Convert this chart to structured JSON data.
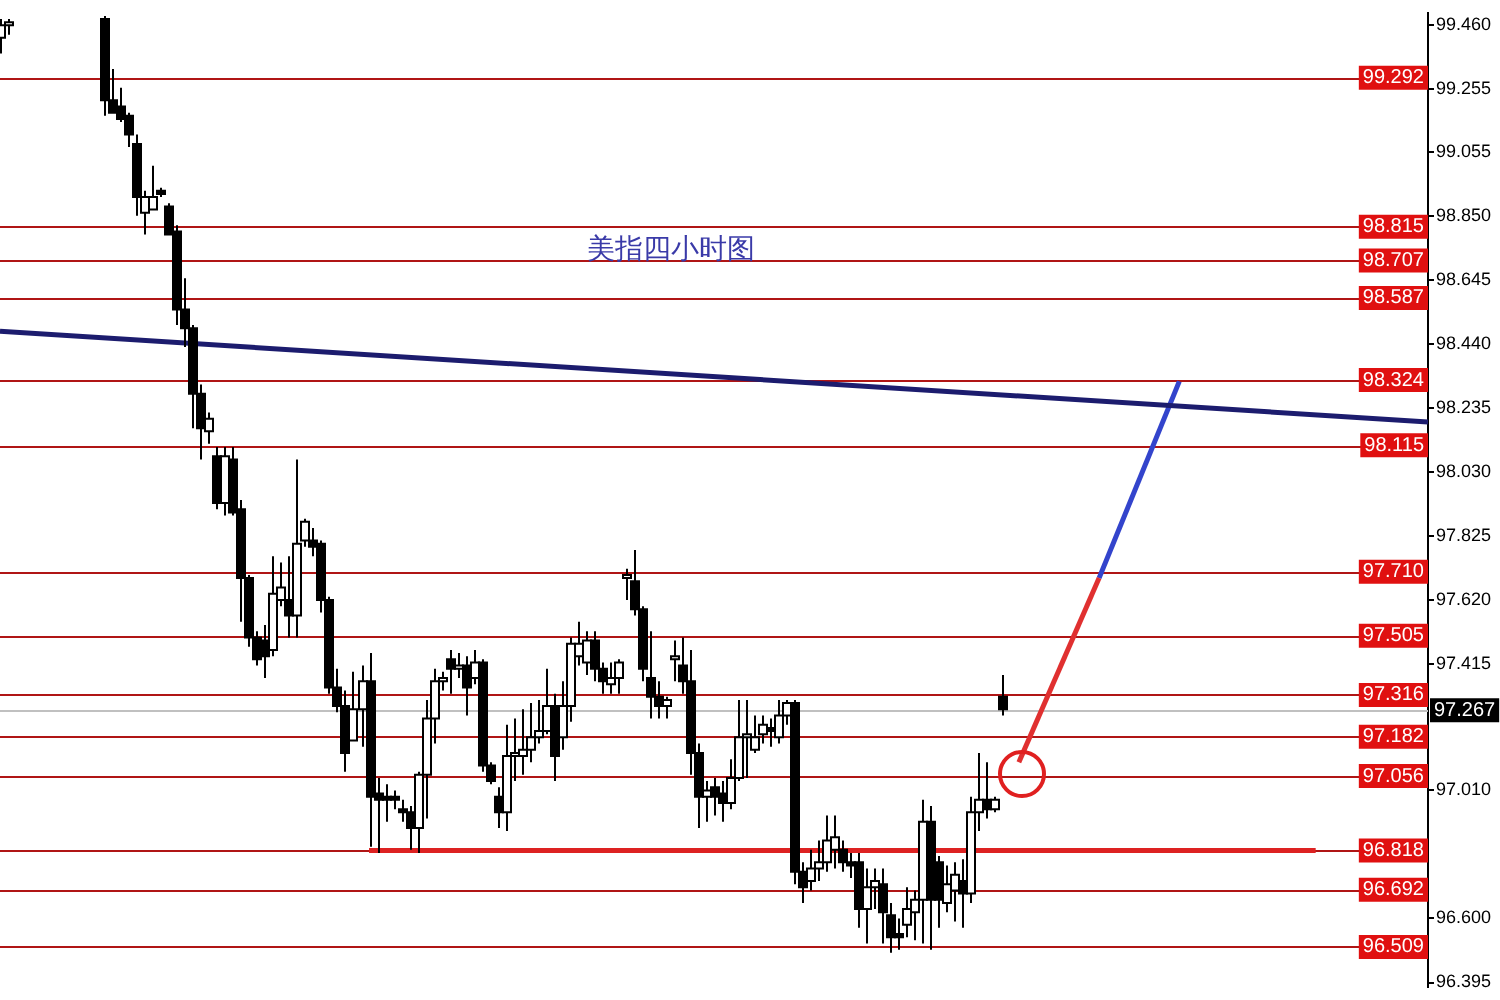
{
  "chart_data": {
    "type": "candlestick",
    "title": "美指四小时图",
    "tick_labels": "y",
    "categories": [
      null,
      null,
      null,
      null,
      null,
      null,
      null,
      null,
      null,
      null,
      null,
      null,
      null,
      null,
      null,
      null,
      null,
      null,
      null,
      null,
      null,
      null,
      null,
      null,
      null,
      null,
      null,
      null,
      null,
      null,
      null,
      null,
      null,
      null,
      null,
      null,
      null,
      null,
      null,
      null,
      null,
      null,
      null,
      null,
      null,
      null,
      null,
      null,
      null,
      null,
      null,
      null,
      null,
      null,
      null,
      null,
      null,
      null,
      null,
      null,
      null,
      null,
      null,
      null,
      null,
      null,
      null,
      null,
      null,
      null,
      null,
      null,
      null,
      null,
      null,
      null,
      null,
      null,
      null,
      null,
      null,
      null,
      null,
      null,
      null,
      null,
      null,
      null,
      null,
      null,
      null,
      null,
      null,
      null,
      null,
      null,
      null,
      null,
      null,
      null,
      null,
      null,
      null,
      null,
      null,
      null,
      null,
      null,
      null,
      null,
      null,
      null,
      null,
      null,
      null,
      null,
      null,
      null,
      null,
      null,
      null,
      null,
      null,
      null,
      null,
      null,
      null,
      null,
      null,
      null,
      null,
      null,
      null,
      null,
      null,
      null,
      null,
      null,
      null,
      null,
      null,
      null,
      null,
      null,
      null,
      null,
      null,
      null,
      null,
      null,
      null,
      null,
      null,
      null,
      null,
      null,
      null,
      null,
      null,
      null,
      null,
      null,
      null,
      null,
      null,
      null,
      null,
      null,
      null,
      null,
      null,
      null,
      null,
      null,
      null,
      null,
      null,
      null,
      null
    ],
    "ohlc": [
      [
        99.42,
        99.48,
        99.37,
        99.46
      ],
      [
        99.46,
        99.48,
        99.43,
        99.47
      ],
      null,
      null,
      null,
      null,
      null,
      null,
      null,
      null,
      null,
      null,
      null,
      [
        99.48,
        99.49,
        99.17,
        99.22
      ],
      [
        99.22,
        99.32,
        99.18,
        99.18
      ],
      [
        99.2,
        99.26,
        99.15,
        99.16
      ],
      [
        99.17,
        99.18,
        99.07,
        99.11
      ],
      [
        99.08,
        99.11,
        98.85,
        98.91
      ],
      [
        98.86,
        98.93,
        98.79,
        98.91
      ],
      [
        98.87,
        99.01,
        98.87,
        98.91
      ],
      [
        98.93,
        98.94,
        98.91,
        98.92
      ],
      [
        98.88,
        98.89,
        98.79,
        98.79
      ],
      [
        98.8,
        98.82,
        98.5,
        98.55
      ],
      [
        98.55,
        98.65,
        98.43,
        98.49
      ],
      [
        98.49,
        98.5,
        98.17,
        98.28
      ],
      [
        98.28,
        98.31,
        98.07,
        98.17
      ],
      [
        98.16,
        98.22,
        98.12,
        98.2
      ],
      [
        98.08,
        98.11,
        97.91,
        97.93
      ],
      [
        97.93,
        98.11,
        97.89,
        98.08
      ],
      [
        98.07,
        98.11,
        97.89,
        97.9
      ],
      [
        97.91,
        97.94,
        97.55,
        97.69
      ],
      [
        97.69,
        97.7,
        97.47,
        97.5
      ],
      [
        97.5,
        97.52,
        97.41,
        97.43
      ],
      [
        97.49,
        97.54,
        97.37,
        97.44
      ],
      [
        97.46,
        97.76,
        97.44,
        97.64
      ],
      [
        97.62,
        97.74,
        97.6,
        97.66
      ],
      [
        97.62,
        97.76,
        97.5,
        97.57
      ],
      [
        97.57,
        98.07,
        97.5,
        97.8
      ],
      [
        97.81,
        97.88,
        97.79,
        97.87
      ],
      [
        97.81,
        97.85,
        97.76,
        97.79
      ],
      [
        97.8,
        97.81,
        97.58,
        97.62
      ],
      [
        97.62,
        97.63,
        97.32,
        97.34
      ],
      [
        97.34,
        97.4,
        97.26,
        97.28
      ],
      [
        97.28,
        97.33,
        97.07,
        97.13
      ],
      [
        97.17,
        97.39,
        97.17,
        97.27
      ],
      [
        97.27,
        97.41,
        97.15,
        97.36
      ],
      [
        97.36,
        97.45,
        96.83,
        96.99
      ],
      [
        97.0,
        97.05,
        96.81,
        96.98
      ],
      [
        96.99,
        97.03,
        96.91,
        96.98
      ],
      [
        96.99,
        97.01,
        96.95,
        96.98
      ],
      [
        96.95,
        96.98,
        96.91,
        96.94
      ],
      [
        96.94,
        96.96,
        96.82,
        96.89
      ],
      [
        96.89,
        97.07,
        96.81,
        97.06
      ],
      [
        97.06,
        97.3,
        96.92,
        97.24
      ],
      [
        97.24,
        97.4,
        97.16,
        97.36
      ],
      [
        97.36,
        97.39,
        97.33,
        97.37
      ],
      [
        97.43,
        97.46,
        97.32,
        97.4
      ],
      [
        97.4,
        97.45,
        97.37,
        97.41
      ],
      [
        97.41,
        97.44,
        97.25,
        97.34
      ],
      [
        97.37,
        97.46,
        97.35,
        97.42
      ],
      [
        97.42,
        97.43,
        97.07,
        97.09
      ],
      [
        97.09,
        97.1,
        97.03,
        97.04
      ],
      [
        96.99,
        97.02,
        96.89,
        96.94
      ],
      [
        96.94,
        97.22,
        96.88,
        97.12
      ],
      [
        97.12,
        97.24,
        97.04,
        97.13
      ],
      [
        97.12,
        97.27,
        97.06,
        97.14
      ],
      [
        97.14,
        97.29,
        97.1,
        97.18
      ],
      [
        97.18,
        97.3,
        97.16,
        97.2
      ],
      [
        97.2,
        97.4,
        97.19,
        97.28
      ],
      [
        97.28,
        97.32,
        97.04,
        97.12
      ],
      [
        97.18,
        97.36,
        97.14,
        97.28
      ],
      [
        97.28,
        97.5,
        97.23,
        97.48
      ],
      [
        97.44,
        97.55,
        97.41,
        97.48
      ],
      [
        97.42,
        97.52,
        97.38,
        97.49
      ],
      [
        97.49,
        97.52,
        97.36,
        97.4
      ],
      [
        97.4,
        97.42,
        97.32,
        97.36
      ],
      [
        97.35,
        97.42,
        97.32,
        97.37
      ],
      [
        97.37,
        97.43,
        97.32,
        97.42
      ],
      [
        97.69,
        97.72,
        97.62,
        97.7
      ],
      [
        97.68,
        97.78,
        97.57,
        97.59
      ],
      [
        97.59,
        97.6,
        97.36,
        97.4
      ],
      [
        97.37,
        97.52,
        97.24,
        97.31
      ],
      [
        97.31,
        97.36,
        97.24,
        97.28
      ],
      [
        97.28,
        97.31,
        97.24,
        97.3
      ],
      [
        97.43,
        97.49,
        97.36,
        97.44
      ],
      [
        97.41,
        97.5,
        97.32,
        97.36
      ],
      [
        97.36,
        97.46,
        97.06,
        97.13
      ],
      [
        97.13,
        97.16,
        96.89,
        96.99
      ],
      [
        96.99,
        97.04,
        96.91,
        97.01
      ],
      [
        97.02,
        97.05,
        96.93,
        96.99
      ],
      [
        97.0,
        97.04,
        96.91,
        96.97
      ],
      [
        96.97,
        97.11,
        96.95,
        97.05
      ],
      [
        97.05,
        97.3,
        97.04,
        97.18
      ],
      [
        97.18,
        97.3,
        97.05,
        97.19
      ],
      [
        97.14,
        97.25,
        97.13,
        97.18
      ],
      [
        97.19,
        97.25,
        97.16,
        97.22
      ],
      [
        97.21,
        97.24,
        97.15,
        97.2
      ],
      [
        97.18,
        97.3,
        97.16,
        97.25
      ],
      [
        97.25,
        97.3,
        97.22,
        97.29
      ],
      [
        97.29,
        97.3,
        96.71,
        96.75
      ],
      [
        96.75,
        96.78,
        96.65,
        96.7
      ],
      [
        96.72,
        96.82,
        96.69,
        96.76
      ],
      [
        96.76,
        96.85,
        96.72,
        96.78
      ],
      [
        96.78,
        96.93,
        96.75,
        96.85
      ],
      [
        96.82,
        96.93,
        96.76,
        96.86
      ],
      [
        96.82,
        96.85,
        96.75,
        96.78
      ],
      [
        96.78,
        96.81,
        96.73,
        96.77
      ],
      [
        96.78,
        96.81,
        96.57,
        96.63
      ],
      [
        96.63,
        96.76,
        96.52,
        96.7
      ],
      [
        96.7,
        96.76,
        96.63,
        96.72
      ],
      [
        96.71,
        96.76,
        96.52,
        96.62
      ],
      [
        96.61,
        96.65,
        96.49,
        96.54
      ],
      [
        96.55,
        96.6,
        96.5,
        96.54
      ],
      [
        96.58,
        96.7,
        96.54,
        96.63
      ],
      [
        96.62,
        96.69,
        96.53,
        96.66
      ],
      [
        96.66,
        96.98,
        96.52,
        96.91
      ],
      [
        96.91,
        96.96,
        96.5,
        96.66
      ],
      [
        96.78,
        96.8,
        96.57,
        96.66
      ],
      [
        96.65,
        96.77,
        96.62,
        96.71
      ],
      [
        96.69,
        96.78,
        96.59,
        96.74
      ],
      [
        96.72,
        96.79,
        96.57,
        96.68
      ],
      [
        96.68,
        96.99,
        96.65,
        96.94
      ],
      [
        96.94,
        97.13,
        96.88,
        96.98
      ],
      [
        96.98,
        97.1,
        96.92,
        96.95
      ],
      [
        96.95,
        96.99,
        96.94,
        96.98
      ],
      [
        97.31,
        97.38,
        97.25,
        97.27
      ],
      null,
      null,
      null,
      null,
      null,
      null,
      null,
      null,
      null,
      null,
      null,
      null,
      null,
      null,
      null,
      null,
      null,
      null,
      null,
      null,
      null,
      null,
      null,
      null,
      null,
      null,
      null,
      null,
      null,
      null,
      null,
      null,
      null,
      null,
      null,
      null,
      null,
      null,
      null,
      null,
      null,
      null,
      null,
      null,
      null,
      null,
      null,
      null,
      null,
      null,
      null,
      null,
      null
    ],
    "series": [
      {
        "type": "line",
        "color": "#1c1c6e",
        "values": [
          98.48,
          null,
          null,
          null,
          null,
          null,
          null,
          null,
          null,
          null,
          null,
          null,
          null,
          null,
          null,
          null,
          null,
          null,
          null,
          null,
          null,
          null,
          null,
          null,
          null,
          null,
          null,
          null,
          null,
          null,
          null,
          null,
          null,
          null,
          null,
          null,
          null,
          null,
          null,
          null,
          null,
          null,
          null,
          null,
          null,
          null,
          null,
          null,
          null,
          null,
          null,
          null,
          null,
          null,
          null,
          null,
          null,
          null,
          null,
          null,
          null,
          null,
          null,
          null,
          null,
          null,
          null,
          null,
          null,
          null,
          null,
          null,
          null,
          null,
          null,
          null,
          null,
          null,
          null,
          null,
          null,
          null,
          null,
          null,
          null,
          null,
          null,
          null,
          null,
          null,
          null,
          null,
          null,
          null,
          null,
          null,
          null,
          null,
          null,
          null,
          null,
          null,
          null,
          null,
          null,
          null,
          null,
          null,
          null,
          null,
          null,
          null,
          null,
          null,
          null,
          null,
          null,
          null,
          null,
          null,
          null,
          null,
          null,
          null,
          null,
          null,
          null,
          null,
          null,
          null,
          null,
          null,
          null,
          null,
          null,
          null,
          null,
          null,
          null,
          null,
          null,
          null,
          null,
          null,
          null,
          null,
          null,
          null,
          null,
          null,
          null,
          null,
          null,
          null,
          null,
          null,
          null,
          null,
          null,
          null,
          null,
          null,
          null,
          null,
          null,
          null,
          null,
          null,
          null,
          null,
          null,
          null,
          null,
          null,
          null,
          null,
          null,
          null,
          98.19
        ]
      },
      {
        "type": "line",
        "color": "#dd2222",
        "values": [
          null,
          null,
          null,
          null,
          null,
          null,
          null,
          null,
          null,
          null,
          null,
          null,
          null,
          null,
          null,
          null,
          null,
          null,
          null,
          null,
          null,
          null,
          null,
          null,
          null,
          null,
          null,
          null,
          null,
          null,
          null,
          null,
          null,
          null,
          null,
          null,
          null,
          null,
          null,
          null,
          null,
          null,
          null,
          null,
          null,
          null,
          96.818,
          null,
          null,
          null,
          null,
          null,
          null,
          null,
          null,
          null,
          null,
          null,
          null,
          null,
          null,
          null,
          null,
          null,
          null,
          null,
          null,
          null,
          null,
          null,
          null,
          null,
          null,
          null,
          null,
          null,
          null,
          null,
          null,
          null,
          null,
          null,
          null,
          null,
          null,
          null,
          null,
          null,
          null,
          null,
          null,
          null,
          null,
          null,
          null,
          null,
          null,
          null,
          null,
          null,
          null,
          null,
          null,
          null,
          null,
          null,
          null,
          null,
          null,
          null,
          null,
          null,
          null,
          null,
          null,
          null,
          null,
          null,
          null,
          null,
          null,
          null,
          null,
          null,
          null,
          null,
          null,
          null,
          null,
          null,
          null,
          null,
          null,
          null,
          null,
          null,
          null,
          null,
          null,
          null,
          null,
          null,
          null,
          null,
          null,
          null,
          null,
          null,
          null,
          null,
          null,
          null,
          null,
          null,
          null,
          null,
          null,
          null,
          null,
          null,
          null,
          null,
          null,
          null,
          96.818,
          null,
          null,
          null,
          null,
          null,
          null,
          null,
          null,
          null,
          null,
          null,
          null,
          null,
          null
        ]
      },
      {
        "type": "line",
        "color": "#e03030",
        "values": [
          null,
          null,
          null,
          null,
          null,
          null,
          null,
          null,
          null,
          null,
          null,
          null,
          null,
          null,
          null,
          null,
          null,
          null,
          null,
          null,
          null,
          null,
          null,
          null,
          null,
          null,
          null,
          null,
          null,
          null,
          null,
          null,
          null,
          null,
          null,
          null,
          null,
          null,
          null,
          null,
          null,
          null,
          null,
          null,
          null,
          null,
          null,
          null,
          null,
          null,
          null,
          null,
          null,
          null,
          null,
          null,
          null,
          null,
          null,
          null,
          null,
          null,
          null,
          null,
          null,
          null,
          null,
          null,
          null,
          null,
          null,
          null,
          null,
          null,
          null,
          null,
          null,
          null,
          null,
          null,
          null,
          null,
          null,
          null,
          null,
          null,
          null,
          null,
          null,
          null,
          null,
          null,
          null,
          null,
          null,
          null,
          null,
          null,
          null,
          null,
          null,
          null,
          null,
          null,
          null,
          null,
          null,
          null,
          null,
          null,
          null,
          null,
          null,
          null,
          null,
          null,
          null,
          null,
          null,
          null,
          null,
          null,
          null,
          null,
          null,
          null,
          null,
          97.1,
          null,
          null,
          null,
          null,
          null,
          null,
          null,
          null,
          null,
          97.69,
          null,
          null,
          null,
          null,
          null,
          null,
          null,
          null,
          null,
          null,
          null,
          null,
          null,
          null,
          null,
          null,
          null,
          null,
          null,
          null,
          null,
          null,
          null,
          null,
          null,
          null,
          null,
          null,
          null,
          null,
          null,
          null,
          null,
          null,
          null,
          null,
          null,
          null,
          null,
          null,
          null
        ]
      },
      {
        "type": "line",
        "color": "#3344cc",
        "values": [
          null,
          null,
          null,
          null,
          null,
          null,
          null,
          null,
          null,
          null,
          null,
          null,
          null,
          null,
          null,
          null,
          null,
          null,
          null,
          null,
          null,
          null,
          null,
          null,
          null,
          null,
          null,
          null,
          null,
          null,
          null,
          null,
          null,
          null,
          null,
          null,
          null,
          null,
          null,
          null,
          null,
          null,
          null,
          null,
          null,
          null,
          null,
          null,
          null,
          null,
          null,
          null,
          null,
          null,
          null,
          null,
          null,
          null,
          null,
          null,
          null,
          null,
          null,
          null,
          null,
          null,
          null,
          null,
          null,
          null,
          null,
          null,
          null,
          null,
          null,
          null,
          null,
          null,
          null,
          null,
          null,
          null,
          null,
          null,
          null,
          null,
          null,
          null,
          null,
          null,
          null,
          null,
          null,
          null,
          null,
          null,
          null,
          null,
          null,
          null,
          null,
          null,
          null,
          null,
          null,
          null,
          null,
          null,
          null,
          null,
          null,
          null,
          null,
          null,
          null,
          null,
          null,
          null,
          null,
          null,
          null,
          null,
          null,
          null,
          null,
          null,
          null,
          null,
          null,
          null,
          null,
          null,
          null,
          null,
          null,
          null,
          null,
          97.69,
          null,
          null,
          null,
          null,
          null,
          null,
          null,
          null,
          null,
          98.32,
          null,
          null,
          null,
          null,
          null,
          null,
          null,
          null,
          null,
          null,
          null,
          null,
          null,
          null,
          null,
          null,
          null,
          null,
          null,
          null,
          null,
          null,
          null,
          null,
          null,
          null,
          null,
          null,
          null,
          null,
          null
        ]
      }
    ],
    "ylim": [
      96.38,
      99.5
    ],
    "yticks": [
      {
        "value": 99.46,
        "label": "99.460"
      },
      {
        "value": 99.255,
        "label": "99.255"
      },
      {
        "value": 99.055,
        "label": "99.055"
      },
      {
        "value": 98.85,
        "label": "98.850"
      },
      {
        "value": 98.645,
        "label": "98.645"
      },
      {
        "value": 98.44,
        "label": "98.440"
      },
      {
        "value": 98.235,
        "label": "98.235"
      },
      {
        "value": 98.03,
        "label": "98.030"
      },
      {
        "value": 97.825,
        "label": "97.825"
      },
      {
        "value": 97.62,
        "label": "97.620"
      },
      {
        "value": 97.415,
        "label": "97.415"
      },
      {
        "value": 97.01,
        "label": "97.010"
      },
      {
        "value": 96.6,
        "label": "96.600"
      },
      {
        "value": 96.395,
        "label": "96.395"
      }
    ],
    "ref_lines": [
      {
        "axis": "y",
        "value": 99.292,
        "label": "99.292",
        "color": "#b01515"
      },
      {
        "axis": "y",
        "value": 98.815,
        "label": "98.815",
        "color": "#b01515"
      },
      {
        "axis": "y",
        "value": 98.707,
        "label": "98.707",
        "color": "#b01515"
      },
      {
        "axis": "y",
        "value": 98.587,
        "label": "98.587",
        "color": "#b01515"
      },
      {
        "axis": "y",
        "value": 98.324,
        "label": "98.324",
        "color": "#b01515"
      },
      {
        "axis": "y",
        "value": 98.115,
        "label": "98.115",
        "color": "#b01515"
      },
      {
        "axis": "y",
        "value": 97.71,
        "label": "97.710",
        "color": "#b01515"
      },
      {
        "axis": "y",
        "value": 97.505,
        "label": "97.505",
        "color": "#b01515"
      },
      {
        "axis": "y",
        "value": 97.316,
        "label": "97.316",
        "color": "#b01515"
      },
      {
        "axis": "y",
        "value": 97.267,
        "label": "97.267",
        "color": "#c0c0c0"
      },
      {
        "axis": "y",
        "value": 97.182,
        "label": "97.182",
        "color": "#b01515"
      },
      {
        "axis": "y",
        "value": 97.056,
        "label": "97.056",
        "color": "#b01515"
      },
      {
        "axis": "y",
        "value": 96.818,
        "label": "96.818",
        "color": "#b01515"
      },
      {
        "axis": "y",
        "value": 96.692,
        "label": "96.692",
        "color": "#b01515"
      },
      {
        "axis": "y",
        "value": 96.509,
        "label": "96.509",
        "color": "#b01515"
      }
    ]
  }
}
